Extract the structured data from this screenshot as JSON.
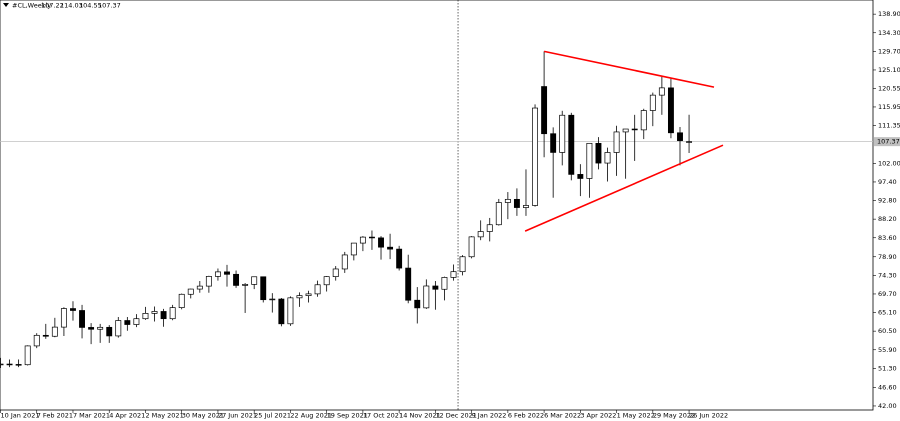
{
  "chart_data": {
    "type": "candlestick",
    "title": "#CL,Weekly",
    "bull_color": "#ffffff",
    "bear_color": "#000000",
    "categories": [
      "10 Jan 2021",
      null,
      null,
      null,
      "7 Feb 2021",
      null,
      null,
      null,
      "7 Mar 2021",
      null,
      null,
      null,
      "4 Apr 2021",
      null,
      null,
      null,
      "2 May 2021",
      null,
      null,
      null,
      "30 May 2021",
      null,
      null,
      null,
      "27 Jun 2021",
      null,
      null,
      null,
      "25 Jul 2021",
      null,
      null,
      null,
      "22 Aug 2021",
      null,
      null,
      null,
      "19 Sep 2021",
      null,
      null,
      null,
      "17 Oct 2021",
      null,
      null,
      null,
      "14 Nov 2021",
      null,
      null,
      null,
      "12 Dec 2021",
      null,
      null,
      null,
      "9 Jan 2022",
      null,
      null,
      null,
      "6 Feb 2022",
      null,
      null,
      null,
      "6 Mar 2022",
      null,
      null,
      null,
      "3 Apr 2022",
      null,
      null,
      null,
      "1 May 2022",
      null,
      null,
      null,
      "29 May 2022",
      null,
      null,
      null,
      "26 Jun 2022"
    ],
    "open": [
      52.3,
      52.36,
      52.27,
      52.2,
      56.85,
      59.47,
      59.24,
      61.5,
      66.09,
      65.61,
      61.42,
      60.97,
      61.45,
      59.32,
      63.13,
      62.14,
      63.58,
      64.9,
      65.37,
      63.58,
      66.32,
      69.62,
      70.91,
      71.64,
      74.05,
      75.16,
      74.56,
      71.81,
      72.07,
      73.95,
      68.28,
      68.44,
      62.32,
      68.74,
      69.29,
      69.72,
      71.97,
      73.98,
      75.88,
      79.35,
      82.28,
      83.76,
      83.57,
      81.27,
      80.79,
      76.1,
      68.15,
      66.26,
      71.67,
      70.86,
      73.79,
      75.21,
      78.9,
      83.82,
      85.14,
      86.82,
      92.31,
      93.1,
      91.07,
      91.59,
      121.0,
      109.33,
      104.7,
      113.9,
      99.27,
      98.26,
      106.95,
      102.07,
      104.69,
      109.77,
      110.49,
      110.28,
      115.07,
      118.87,
      120.67,
      109.56,
      107.22
    ],
    "high": [
      53.9,
      53.5,
      53.5,
      57.0,
      60.0,
      62.3,
      63.8,
      66.4,
      67.9,
      67.0,
      62.5,
      62.3,
      62.0,
      64.0,
      64.0,
      64.7,
      66.5,
      66.6,
      66.0,
      67.0,
      69.8,
      71.0,
      72.9,
      74.2,
      76.0,
      76.9,
      75.5,
      72.4,
      74.0,
      74.0,
      69.9,
      68.7,
      69.1,
      70.1,
      70.5,
      73.0,
      74.1,
      76.6,
      80.1,
      82.3,
      84.0,
      85.4,
      84.0,
      84.6,
      81.6,
      79.4,
      71.4,
      73.3,
      72.9,
      74.0,
      77.0,
      79.3,
      84.0,
      87.9,
      88.5,
      93.2,
      94.9,
      95.8,
      100.5,
      116.6,
      129.7,
      110.9,
      115.0,
      114.5,
      101.8,
      107.0,
      108.5,
      105.9,
      111.3,
      110.5,
      114.0,
      115.5,
      119.5,
      123.7,
      123.0,
      111.0,
      114.03
    ],
    "low": [
      51.4,
      51.6,
      51.6,
      52.0,
      56.3,
      58.6,
      59.0,
      59.3,
      63.1,
      58.7,
      57.3,
      57.6,
      57.6,
      58.9,
      60.6,
      61.5,
      63.3,
      62.9,
      61.6,
      63.2,
      65.9,
      68.6,
      70.0,
      70.0,
      73.0,
      71.5,
      71.2,
      65.0,
      70.9,
      67.6,
      65.1,
      61.7,
      61.8,
      66.5,
      67.6,
      69.0,
      70.3,
      73.0,
      74.9,
      78.0,
      80.3,
      80.6,
      78.2,
      78.3,
      75.5,
      67.4,
      62.4,
      66.0,
      65.8,
      68.1,
      73.0,
      74.3,
      78.5,
      83.0,
      82.7,
      86.6,
      88.2,
      89.0,
      89.0,
      91.3,
      103.5,
      93.5,
      101.5,
      97.8,
      93.9,
      93.5,
      100.5,
      97.5,
      98.9,
      98.2,
      102.6,
      108.0,
      111.2,
      114.0,
      108.2,
      101.5,
      104.55
    ],
    "close": [
      52.36,
      52.27,
      52.2,
      56.85,
      59.47,
      59.24,
      61.5,
      66.09,
      65.61,
      61.42,
      60.97,
      61.45,
      59.32,
      63.13,
      62.14,
      63.58,
      64.9,
      65.37,
      63.58,
      66.32,
      69.62,
      70.91,
      71.64,
      74.05,
      75.16,
      74.56,
      71.81,
      72.07,
      73.95,
      68.28,
      68.44,
      62.32,
      68.74,
      69.29,
      69.72,
      71.97,
      73.98,
      75.88,
      79.35,
      82.28,
      83.76,
      83.57,
      81.27,
      80.79,
      76.1,
      68.15,
      66.26,
      71.67,
      70.86,
      73.79,
      75.21,
      78.9,
      83.82,
      85.14,
      86.82,
      92.31,
      93.1,
      91.07,
      91.59,
      115.68,
      109.33,
      104.7,
      113.9,
      99.27,
      98.26,
      106.95,
      102.07,
      104.69,
      109.77,
      110.49,
      110.28,
      115.07,
      118.87,
      120.67,
      109.56,
      107.62,
      107.37
    ],
    "ylim": [
      41.0,
      142.4
    ],
    "yticks": [
      {
        "value": 138.9,
        "label": "138.90"
      },
      {
        "value": 134.3,
        "label": "134.30"
      },
      {
        "value": 129.7,
        "label": "129.70"
      },
      {
        "value": 125.1,
        "label": "125.10"
      },
      {
        "value": 120.55,
        "label": "120.55"
      },
      {
        "value": 115.95,
        "label": "115.95"
      },
      {
        "value": 111.35,
        "label": "111.35"
      },
      {
        "value": 102.0,
        "label": "102.00"
      },
      {
        "value": 97.4,
        "label": "97.40"
      },
      {
        "value": 92.8,
        "label": "92.80"
      },
      {
        "value": 88.2,
        "label": "88.20"
      },
      {
        "value": 83.6,
        "label": "83.60"
      },
      {
        "value": 78.9,
        "label": "78.90"
      },
      {
        "value": 74.3,
        "label": "74.30"
      },
      {
        "value": 69.7,
        "label": "69.70"
      },
      {
        "value": 65.1,
        "label": "65.10"
      },
      {
        "value": 60.5,
        "label": "60.50"
      },
      {
        "value": 55.9,
        "label": "55.90"
      },
      {
        "value": 51.3,
        "label": "51.30"
      },
      {
        "value": 46.6,
        "label": "46.60"
      },
      {
        "value": 42.0,
        "label": "42.00"
      }
    ],
    "trendlines": [
      {
        "color": "#ff0000",
        "x": [
          60,
          78.75
        ],
        "y": [
          129.7,
          120.85
        ]
      },
      {
        "color": "#ff0000",
        "x": [
          57.9,
          79.75
        ],
        "y": [
          85.25,
          106.5
        ]
      }
    ],
    "price_line_color": "#c0c0c0"
  }
}
